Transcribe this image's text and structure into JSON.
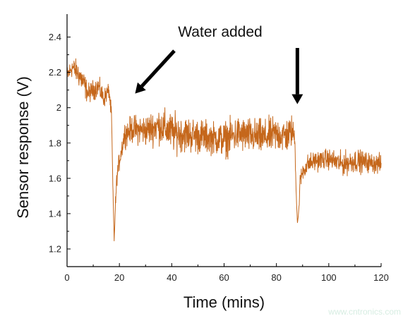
{
  "chart_data": {
    "type": "line",
    "title": "",
    "xlabel": "Time (mins)",
    "ylabel": "Sensor response (V)",
    "xlim": [
      0,
      120
    ],
    "ylim": [
      1.1,
      2.53
    ],
    "x_ticks": [
      0,
      20,
      40,
      60,
      80,
      100,
      120
    ],
    "x_tick_labels": [
      "0",
      "20",
      "40",
      "60",
      "80",
      "100",
      "120"
    ],
    "y_ticks": [
      1.2,
      1.4,
      1.6,
      1.8,
      2.0,
      2.2,
      2.4
    ],
    "y_tick_labels": [
      "1.2",
      "1.4",
      "1.6",
      "1.8",
      "2",
      "2.2",
      "2.4"
    ],
    "grid": false,
    "legend": "none",
    "line_color": "#C5671B",
    "annotations": [
      {
        "text": "Water added",
        "arrows_point_to": [
          [
            26,
            2.08
          ],
          [
            88,
            2.02
          ]
        ]
      }
    ],
    "series": [
      {
        "x": [
          0,
          2,
          4,
          6,
          8,
          10,
          12,
          14,
          16,
          17,
          17.5,
          18,
          18.5,
          19,
          20,
          22,
          25,
          30,
          35,
          40,
          45,
          50,
          55,
          60,
          65,
          70,
          75,
          80,
          84,
          86,
          87,
          87.5,
          88,
          88.5,
          89,
          90,
          92,
          95,
          100,
          105,
          110,
          115,
          120
        ],
        "y": [
          2.18,
          2.23,
          2.2,
          2.15,
          2.08,
          2.1,
          2.12,
          2.05,
          2.1,
          1.95,
          1.55,
          1.25,
          1.45,
          1.6,
          1.7,
          1.85,
          1.88,
          1.87,
          1.9,
          1.86,
          1.85,
          1.84,
          1.83,
          1.82,
          1.85,
          1.84,
          1.83,
          1.85,
          1.84,
          1.87,
          1.83,
          1.55,
          1.35,
          1.4,
          1.58,
          1.64,
          1.68,
          1.7,
          1.71,
          1.68,
          1.7,
          1.69,
          1.68
        ],
        "noise": [
          0.05,
          0.05,
          0.06,
          0.07,
          0.05,
          0.05,
          0.05,
          0.05,
          0.04,
          0.04,
          0.02,
          0.01,
          0.04,
          0.04,
          0.05,
          0.06,
          0.07,
          0.08,
          0.09,
          0.1,
          0.09,
          0.09,
          0.08,
          0.09,
          0.09,
          0.09,
          0.09,
          0.09,
          0.09,
          0.08,
          0.04,
          0.03,
          0.02,
          0.02,
          0.04,
          0.05,
          0.05,
          0.05,
          0.05,
          0.06,
          0.06,
          0.05,
          0.05
        ]
      }
    ]
  },
  "watermark": "www.cntronics.com"
}
